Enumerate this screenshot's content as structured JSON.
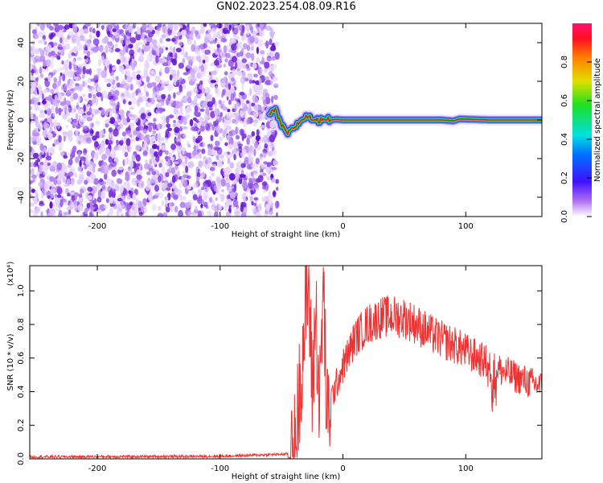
{
  "title": "GN02.2023.254.08.09.R16",
  "colors": {
    "snr_line": "#ee3333",
    "spectrum_track": "#e02020",
    "background_dots": "#7a28e0"
  },
  "chart_data": [
    {
      "type": "heatmap",
      "name": "spectrogram",
      "xlabel": "Height of straight line (km)",
      "ylabel": "Frequency (Hz)",
      "xlim": [
        -255,
        162
      ],
      "ylim": [
        -50,
        50
      ],
      "xticks": [
        -200,
        -100,
        0,
        100
      ],
      "yticks": [
        40,
        20,
        0,
        -20,
        -40
      ],
      "colorbar": {
        "label": "Normalized spectral amplitude",
        "range": [
          0,
          1
        ],
        "ticks": [
          "0.0",
          "0.2",
          "0.4",
          "0.6",
          "0.8"
        ]
      },
      "noise_region_x": [
        -255,
        -60
      ],
      "track": {
        "x": [
          -60,
          -55,
          -50,
          -45,
          -40,
          -35,
          -30,
          -25,
          -20,
          -15,
          -10,
          -5,
          0,
          20,
          40,
          60,
          80,
          90,
          95,
          100,
          120,
          140,
          162
        ],
        "y": [
          3,
          5,
          -3,
          -7,
          -4,
          -1,
          2,
          0.5,
          -0.5,
          1,
          0,
          0.3,
          0,
          0,
          0,
          0,
          0,
          -0.5,
          0.5,
          0.4,
          0,
          0,
          0
        ]
      }
    },
    {
      "type": "line",
      "name": "snr",
      "xlabel": "Height of straight line (km)",
      "ylabel": "SNR (10 * v/v)",
      "ylabel_scale": "(x10⁴)",
      "xlim": [
        -255,
        162
      ],
      "ylim": [
        0,
        1.15
      ],
      "xticks": [
        -200,
        -100,
        0,
        100
      ],
      "yticks": [
        "0.0",
        "0.2",
        "0.4",
        "0.6",
        "0.8",
        "1.0"
      ],
      "profile": {
        "x": [
          -255,
          -100,
          -40,
          -37,
          -34,
          -31,
          -28,
          -25,
          -22,
          -19,
          -16,
          -13,
          -10,
          -5,
          0,
          10,
          20,
          30,
          40,
          50,
          60,
          70,
          80,
          90,
          100,
          110,
          120,
          130,
          140,
          150,
          162
        ],
        "y": [
          0.012,
          0.015,
          0.03,
          0.25,
          0.55,
          0.8,
          1.05,
          0.4,
          0.9,
          0.3,
          1.05,
          0.2,
          0.35,
          0.45,
          0.55,
          0.72,
          0.8,
          0.84,
          0.85,
          0.84,
          0.8,
          0.75,
          0.71,
          0.68,
          0.64,
          0.6,
          0.56,
          0.52,
          0.49,
          0.46,
          0.43
        ]
      }
    }
  ]
}
